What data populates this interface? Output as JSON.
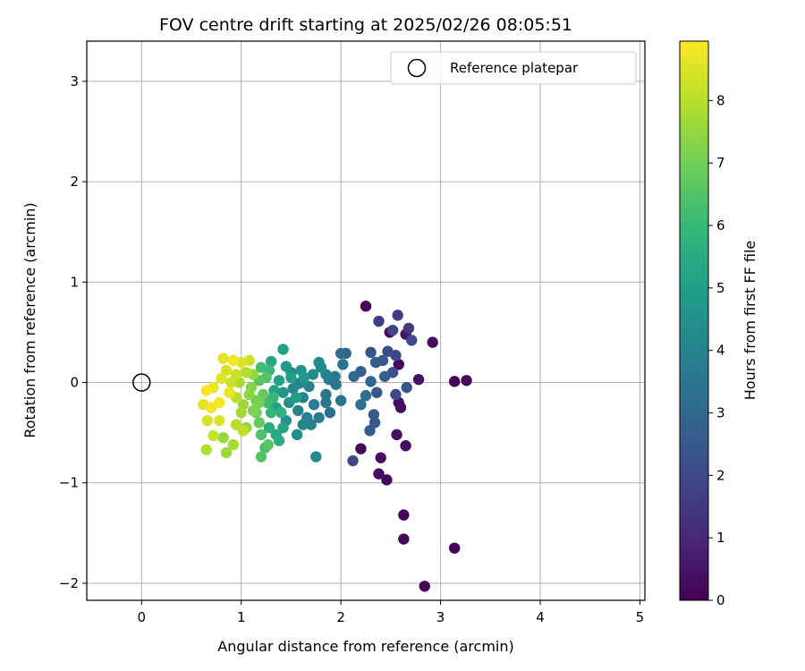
{
  "chart_data": {
    "type": "scatter",
    "title": "FOV centre drift starting at 2025/02/26 08:05:51",
    "xlabel": "Angular distance from reference (arcmin)",
    "ylabel": "Rotation from reference (arcmin)",
    "xlim": [
      -0.55,
      5.05
    ],
    "ylim": [
      -2.17,
      3.4
    ],
    "xticks": [
      0,
      1,
      2,
      3,
      4,
      5
    ],
    "xtick_labels": [
      "0",
      "1",
      "2",
      "3",
      "4",
      "5"
    ],
    "yticks": [
      -2,
      -1,
      0,
      1,
      2,
      3
    ],
    "ytick_labels": [
      "−2",
      "−1",
      "0",
      "1",
      "2",
      "3"
    ],
    "grid": true,
    "legend": {
      "position": "top-right",
      "entries": [
        "Reference platepar"
      ]
    },
    "reference_point": {
      "x": 0,
      "y": 0,
      "label": "Reference platepar"
    },
    "colorbar": {
      "label": "Hours from first FF file",
      "range": [
        0,
        8.95
      ],
      "ticks": [
        0,
        1,
        2,
        3,
        4,
        5,
        6,
        7,
        8
      ],
      "tick_labels": [
        "0",
        "1",
        "2",
        "3",
        "4",
        "5",
        "6",
        "7",
        "8"
      ],
      "colormap": "viridis",
      "colormap_stops": [
        "#440154",
        "#482878",
        "#3e4989",
        "#31688e",
        "#26828e",
        "#1f9e89",
        "#35b779",
        "#6ece58",
        "#b5de2b",
        "#fde725"
      ]
    },
    "points": [
      {
        "x": 2.25,
        "y": 0.76,
        "t": 0.1
      },
      {
        "x": 2.57,
        "y": 0.67,
        "t": 1.6
      },
      {
        "x": 2.38,
        "y": 0.61,
        "t": 1.7
      },
      {
        "x": 2.49,
        "y": 0.5,
        "t": 0.2
      },
      {
        "x": 2.68,
        "y": 0.54,
        "t": 1.5
      },
      {
        "x": 2.71,
        "y": 0.42,
        "t": 2.0
      },
      {
        "x": 2.92,
        "y": 0.4,
        "t": 0.3
      },
      {
        "x": 2.65,
        "y": 0.48,
        "t": 0.5
      },
      {
        "x": 2.52,
        "y": 0.52,
        "t": 1.8
      },
      {
        "x": 2.47,
        "y": 0.31,
        "t": 2.1
      },
      {
        "x": 2.3,
        "y": 0.3,
        "t": 2.3
      },
      {
        "x": 2.05,
        "y": 0.29,
        "t": 3.0
      },
      {
        "x": 2.0,
        "y": 0.29,
        "t": 3.1
      },
      {
        "x": 2.58,
        "y": 0.18,
        "t": 0.2
      },
      {
        "x": 2.55,
        "y": 0.27,
        "t": 1.9
      },
      {
        "x": 2.42,
        "y": 0.22,
        "t": 2.5
      },
      {
        "x": 2.35,
        "y": 0.2,
        "t": 2.6
      },
      {
        "x": 2.2,
        "y": 0.11,
        "t": 2.8
      },
      {
        "x": 2.13,
        "y": 0.06,
        "t": 3.0
      },
      {
        "x": 2.02,
        "y": 0.18,
        "t": 3.4
      },
      {
        "x": 1.94,
        "y": 0.06,
        "t": 3.6
      },
      {
        "x": 1.78,
        "y": 0.2,
        "t": 4.3
      },
      {
        "x": 2.78,
        "y": 0.03,
        "t": 0.4
      },
      {
        "x": 2.66,
        "y": -0.05,
        "t": 2.4
      },
      {
        "x": 2.52,
        "y": 0.1,
        "t": 2.2
      },
      {
        "x": 2.44,
        "y": 0.06,
        "t": 2.7
      },
      {
        "x": 2.3,
        "y": 0.01,
        "t": 2.9
      },
      {
        "x": 2.36,
        "y": -0.1,
        "t": 2.4
      },
      {
        "x": 2.25,
        "y": -0.13,
        "t": 3.2
      },
      {
        "x": 2.55,
        "y": -0.12,
        "t": 2.0
      },
      {
        "x": 2.58,
        "y": -0.2,
        "t": 0.3
      },
      {
        "x": 2.6,
        "y": -0.25,
        "t": 0.2
      },
      {
        "x": 3.14,
        "y": 0.01,
        "t": 0.1
      },
      {
        "x": 3.26,
        "y": 0.02,
        "t": 0.2
      },
      {
        "x": 2.2,
        "y": -0.22,
        "t": 3.2
      },
      {
        "x": 2.33,
        "y": -0.32,
        "t": 2.6
      },
      {
        "x": 2.34,
        "y": -0.4,
        "t": 2.5
      },
      {
        "x": 2.29,
        "y": -0.48,
        "t": 2.6
      },
      {
        "x": 2.56,
        "y": -0.52,
        "t": 0.4
      },
      {
        "x": 2.2,
        "y": -0.66,
        "t": 0.2
      },
      {
        "x": 2.65,
        "y": -0.63,
        "t": 0.3
      },
      {
        "x": 2.12,
        "y": -0.78,
        "t": 2.0
      },
      {
        "x": 2.4,
        "y": -0.75,
        "t": 0.3
      },
      {
        "x": 2.38,
        "y": -0.91,
        "t": 0.3
      },
      {
        "x": 2.46,
        "y": -0.97,
        "t": 0.2
      },
      {
        "x": 2.63,
        "y": -1.32,
        "t": 0.1
      },
      {
        "x": 2.63,
        "y": -1.56,
        "t": 0.1
      },
      {
        "x": 3.14,
        "y": -1.65,
        "t": 0.1
      },
      {
        "x": 2.84,
        "y": -2.03,
        "t": 0.1
      },
      {
        "x": 2.0,
        "y": -0.18,
        "t": 3.4
      },
      {
        "x": 1.89,
        "y": -0.3,
        "t": 3.3
      },
      {
        "x": 1.85,
        "y": -0.2,
        "t": 3.5
      },
      {
        "x": 1.85,
        "y": 0.08,
        "t": 4.0
      },
      {
        "x": 1.75,
        "y": -0.74,
        "t": 4.3
      },
      {
        "x": 1.42,
        "y": 0.33,
        "t": 5.1
      },
      {
        "x": 1.3,
        "y": 0.21,
        "t": 5.3
      },
      {
        "x": 1.45,
        "y": 0.16,
        "t": 4.8
      },
      {
        "x": 1.5,
        "y": 0.1,
        "t": 4.4
      },
      {
        "x": 1.6,
        "y": 0.12,
        "t": 4.6
      },
      {
        "x": 1.72,
        "y": 0.08,
        "t": 4.3
      },
      {
        "x": 1.68,
        "y": -0.04,
        "t": 4.0
      },
      {
        "x": 1.58,
        "y": -0.01,
        "t": 4.1
      },
      {
        "x": 1.52,
        "y": -0.06,
        "t": 4.2
      },
      {
        "x": 1.62,
        "y": -0.15,
        "t": 4.0
      },
      {
        "x": 1.73,
        "y": -0.22,
        "t": 3.8
      },
      {
        "x": 1.78,
        "y": -0.35,
        "t": 3.7
      },
      {
        "x": 1.66,
        "y": -0.35,
        "t": 3.9
      },
      {
        "x": 1.57,
        "y": -0.28,
        "t": 4.1
      },
      {
        "x": 1.48,
        "y": -0.2,
        "t": 4.5
      },
      {
        "x": 1.42,
        "y": -0.1,
        "t": 4.7
      },
      {
        "x": 1.38,
        "y": 0.02,
        "t": 5.0
      },
      {
        "x": 1.33,
        "y": -0.08,
        "t": 5.2
      },
      {
        "x": 1.35,
        "y": -0.25,
        "t": 5.0
      },
      {
        "x": 1.45,
        "y": -0.38,
        "t": 4.6
      },
      {
        "x": 1.56,
        "y": -0.52,
        "t": 4.4
      },
      {
        "x": 1.7,
        "y": -0.42,
        "t": 3.9
      },
      {
        "x": 1.85,
        "y": -0.12,
        "t": 3.6
      },
      {
        "x": 1.95,
        "y": -0.02,
        "t": 3.5
      },
      {
        "x": 1.8,
        "y": 0.15,
        "t": 4.2
      },
      {
        "x": 1.88,
        "y": 0.03,
        "t": 3.7
      },
      {
        "x": 1.63,
        "y": 0.05,
        "t": 4.8
      },
      {
        "x": 1.55,
        "y": -0.15,
        "t": 4.9
      },
      {
        "x": 1.2,
        "y": 0.15,
        "t": 6.2
      },
      {
        "x": 1.25,
        "y": 0.05,
        "t": 6.5
      },
      {
        "x": 1.22,
        "y": -0.12,
        "t": 6.8
      },
      {
        "x": 1.3,
        "y": -0.3,
        "t": 5.8
      },
      {
        "x": 1.28,
        "y": -0.45,
        "t": 5.6
      },
      {
        "x": 1.35,
        "y": -0.52,
        "t": 5.4
      },
      {
        "x": 1.38,
        "y": -0.58,
        "t": 5.5
      },
      {
        "x": 1.2,
        "y": -0.52,
        "t": 6.4
      },
      {
        "x": 1.15,
        "y": -0.3,
        "t": 6.9
      },
      {
        "x": 1.18,
        "y": -0.2,
        "t": 7.1
      },
      {
        "x": 1.1,
        "y": -0.05,
        "t": 7.3
      },
      {
        "x": 1.12,
        "y": 0.08,
        "t": 7.5
      },
      {
        "x": 1.24,
        "y": -0.65,
        "t": 6.3
      },
      {
        "x": 1.2,
        "y": -0.74,
        "t": 6.5
      },
      {
        "x": 1.27,
        "y": -0.62,
        "t": 6.6
      },
      {
        "x": 1.05,
        "y": -0.45,
        "t": 7.4
      },
      {
        "x": 1.0,
        "y": -0.3,
        "t": 7.7
      },
      {
        "x": 0.95,
        "y": -0.15,
        "t": 8.0
      },
      {
        "x": 0.9,
        "y": 0.0,
        "t": 8.2
      },
      {
        "x": 0.85,
        "y": 0.12,
        "t": 8.4
      },
      {
        "x": 0.82,
        "y": 0.24,
        "t": 8.6
      },
      {
        "x": 0.92,
        "y": 0.22,
        "t": 8.8
      },
      {
        "x": 1.0,
        "y": 0.2,
        "t": 8.5
      },
      {
        "x": 1.08,
        "y": 0.22,
        "t": 8.3
      },
      {
        "x": 0.88,
        "y": -0.1,
        "t": 8.7
      },
      {
        "x": 0.78,
        "y": -0.2,
        "t": 8.9
      },
      {
        "x": 0.7,
        "y": -0.25,
        "t": 8.8
      },
      {
        "x": 0.65,
        "y": -0.08,
        "t": 8.9
      },
      {
        "x": 0.62,
        "y": -0.22,
        "t": 8.6
      },
      {
        "x": 0.66,
        "y": -0.38,
        "t": 8.4
      },
      {
        "x": 0.72,
        "y": -0.53,
        "t": 8.2
      },
      {
        "x": 0.65,
        "y": -0.67,
        "t": 7.9
      },
      {
        "x": 0.85,
        "y": -0.7,
        "t": 7.6
      },
      {
        "x": 0.92,
        "y": -0.62,
        "t": 7.8
      },
      {
        "x": 0.82,
        "y": -0.55,
        "t": 7.5
      },
      {
        "x": 0.95,
        "y": -0.42,
        "t": 8.0
      },
      {
        "x": 1.02,
        "y": -0.48,
        "t": 8.1
      },
      {
        "x": 0.78,
        "y": -0.38,
        "t": 8.5
      },
      {
        "x": 0.72,
        "y": -0.05,
        "t": 8.7
      },
      {
        "x": 0.8,
        "y": 0.04,
        "t": 8.6
      },
      {
        "x": 0.95,
        "y": 0.08,
        "t": 8.3
      },
      {
        "x": 1.05,
        "y": 0.1,
        "t": 7.9
      },
      {
        "x": 1.12,
        "y": -0.28,
        "t": 7.2
      },
      {
        "x": 1.18,
        "y": -0.4,
        "t": 6.8
      },
      {
        "x": 1.15,
        "y": -0.18,
        "t": 7.0
      },
      {
        "x": 1.26,
        "y": -0.2,
        "t": 6.1
      },
      {
        "x": 1.32,
        "y": -0.15,
        "t": 5.9
      },
      {
        "x": 1.4,
        "y": -0.3,
        "t": 5.7
      },
      {
        "x": 1.28,
        "y": 0.12,
        "t": 6.0
      },
      {
        "x": 1.18,
        "y": 0.02,
        "t": 6.6
      },
      {
        "x": 1.08,
        "y": -0.12,
        "t": 7.4
      },
      {
        "x": 1.02,
        "y": -0.22,
        "t": 7.6
      },
      {
        "x": 0.98,
        "y": 0.0,
        "t": 7.8
      },
      {
        "x": 1.5,
        "y": 0.05,
        "t": 5.0
      },
      {
        "x": 1.42,
        "y": -0.45,
        "t": 5.2
      },
      {
        "x": 1.62,
        "y": -0.42,
        "t": 4.0
      }
    ]
  }
}
